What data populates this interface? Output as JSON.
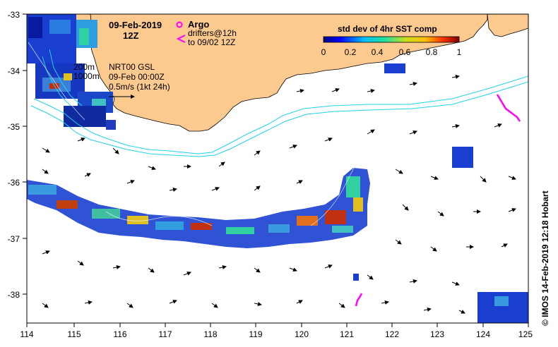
{
  "map": {
    "date_title": "09-Feb-2019",
    "time_title": "12Z",
    "legend": {
      "argo_label": "Argo",
      "drifters_label": "drifters@12h",
      "drifters_to_label": "to 09/02 12Z",
      "argo_color": "#ff00ff",
      "drifter_color": "#ff00ff"
    },
    "contours": {
      "label_200": "200m",
      "label_1000": "1000m",
      "color": "#22d3e6"
    },
    "currents": {
      "product": "NRT00 GSL",
      "time": "09-Feb 00:00Z",
      "scale": "0.5m/s (1kt 24h)"
    },
    "colorbar": {
      "title": "std dev of 4hr SST comp",
      "ticks": [
        "0",
        "0.2",
        "0.4",
        "0.6",
        "0.8",
        "1"
      ]
    },
    "credit": "© IMOS 14-Feb-2019 12:18 Hobart",
    "axes": {
      "x_ticks": [
        "114",
        "115",
        "116",
        "117",
        "118",
        "119",
        "120",
        "121",
        "122",
        "123",
        "124",
        "125"
      ],
      "y_ticks": [
        "-33",
        "-34",
        "-35",
        "-36",
        "-37",
        "-38"
      ]
    },
    "colors": {
      "land": "#fcc98f",
      "frame": "#000000"
    }
  }
}
